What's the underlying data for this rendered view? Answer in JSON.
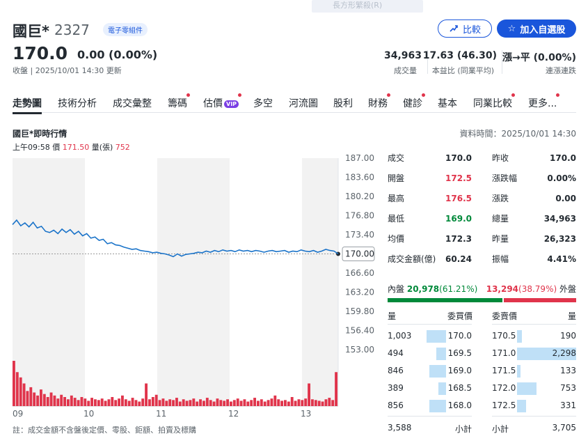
{
  "tooltip": {
    "text": "長方形繁殺(R)"
  },
  "header": {
    "name": "國巨*",
    "code": "2327",
    "tag": "電子零組件",
    "price": "170.0",
    "change": "0.00 (0.00%)",
    "close_info": "收盤 | 2025/10/01 14:30 更新",
    "compare_label": "比較",
    "watch_label": "加入自選股"
  },
  "stats": [
    {
      "value": "34,963",
      "label": "成交量"
    },
    {
      "value": "17.63 (46.30)",
      "label": "本益比 (同業平均)"
    },
    {
      "value": "漲→平 (0.00%)",
      "label": "連漲連跌"
    }
  ],
  "tabs": [
    {
      "label": "走勢圖",
      "dot": false,
      "vip": false
    },
    {
      "label": "技術分析",
      "dot": false,
      "vip": false
    },
    {
      "label": "成交彙整",
      "dot": false,
      "vip": false
    },
    {
      "label": "籌碼",
      "dot": true,
      "vip": false
    },
    {
      "label": "估價",
      "dot": true,
      "vip": true,
      "vip_text": "VIP"
    },
    {
      "label": "多空",
      "dot": false,
      "vip": false
    },
    {
      "label": "河流圖",
      "dot": false,
      "vip": false
    },
    {
      "label": "股利",
      "dot": false,
      "vip": false
    },
    {
      "label": "財務",
      "dot": true,
      "vip": false
    },
    {
      "label": "健診",
      "dot": true,
      "vip": false
    },
    {
      "label": "基本",
      "dot": false,
      "vip": false
    },
    {
      "label": "同業比較",
      "dot": true,
      "vip": false
    },
    {
      "label": "更多...",
      "dot": true,
      "vip": false
    }
  ],
  "section": {
    "title": "國巨*即時行情",
    "data_time": "資料時間：2025/10/01 14:30",
    "hover_time": "上午09:58",
    "hover_price_label": "價",
    "hover_price": "171.50",
    "hover_vol_label": "量(張)",
    "hover_vol": "752"
  },
  "chart_data": {
    "type": "line",
    "y_ticks": [
      "187.00",
      "183.60",
      "180.20",
      "176.80",
      "173.40",
      "170.00",
      "166.60",
      "163.20",
      "159.80",
      "156.40",
      "153.00"
    ],
    "y_range": [
      153.0,
      187.0
    ],
    "x_ticks": [
      "09",
      "10",
      "11",
      "12",
      "13"
    ],
    "current_label": "170.00",
    "reference": 170.0,
    "series": [
      {
        "values": [
          175.2,
          176.0,
          175.0,
          175.5,
          174.8,
          175.6,
          174.6,
          174.9,
          174.0,
          173.8,
          174.2,
          173.6,
          174.4,
          173.8,
          174.3,
          173.5,
          174.0,
          173.2,
          173.6,
          172.8,
          173.0,
          172.4,
          172.6,
          171.8,
          172.0,
          171.6,
          171.5,
          171.2,
          171.0,
          170.8,
          170.9,
          170.6,
          170.5,
          170.4,
          170.2,
          170.3,
          170.1,
          170.0,
          169.8,
          169.5,
          170.0,
          169.6,
          169.9,
          170.0,
          170.1,
          170.3,
          170.2,
          170.5,
          170.3,
          170.6,
          170.4,
          170.7,
          170.5,
          170.6,
          170.4,
          170.7,
          170.5,
          170.6,
          170.4,
          170.6,
          170.5,
          170.3,
          170.5,
          170.6,
          170.4,
          170.5,
          170.6,
          170.3,
          170.5,
          170.4,
          170.7,
          170.5,
          170.4,
          170.6,
          170.3,
          170.5,
          170.8,
          170.6,
          170.5,
          170.0
        ]
      }
    ],
    "volumes": [
      60,
      45,
      38,
      30,
      20,
      25,
      18,
      14,
      22,
      16,
      12,
      18,
      14,
      10,
      15,
      12,
      9,
      14,
      11,
      8,
      12,
      10,
      7,
      11,
      9,
      8,
      10,
      7,
      9,
      12,
      8,
      10,
      14,
      9,
      7,
      11,
      8,
      6,
      10,
      30,
      9,
      12,
      15,
      8,
      10,
      7,
      9,
      8,
      11,
      6,
      9,
      7,
      8,
      10,
      6,
      9,
      7,
      11,
      8,
      6,
      10,
      8,
      7,
      9,
      6,
      8,
      10,
      7,
      9,
      6,
      8,
      11,
      7,
      9,
      6,
      8,
      10,
      14,
      9,
      7,
      8,
      6,
      12,
      7,
      9,
      8,
      10,
      30,
      9,
      8,
      7,
      6,
      9,
      11,
      8,
      45
    ]
  },
  "quote": {
    "left": [
      {
        "label": "成交",
        "value": "170.0",
        "color": ""
      },
      {
        "label": "開盤",
        "value": "172.5",
        "color": "red"
      },
      {
        "label": "最高",
        "value": "176.5",
        "color": "red"
      },
      {
        "label": "最低",
        "value": "169.0",
        "color": "green"
      },
      {
        "label": "均價",
        "value": "172.3",
        "color": ""
      },
      {
        "label": "成交金額(億)",
        "value": "60.24",
        "color": ""
      }
    ],
    "right": [
      {
        "label": "昨收",
        "value": "170.0",
        "color": ""
      },
      {
        "label": "漲跌幅",
        "value": "0.00%",
        "color": ""
      },
      {
        "label": "漲跌",
        "value": "0.00",
        "color": ""
      },
      {
        "label": "總量",
        "value": "34,963",
        "color": ""
      },
      {
        "label": "昨量",
        "value": "26,323",
        "color": ""
      },
      {
        "label": "振幅",
        "value": "4.41%",
        "color": ""
      }
    ]
  },
  "inner_outer": {
    "inner_label": "內盤",
    "inner_value": "20,978",
    "inner_pct": "(61.21%)",
    "outer_value": "13,294",
    "outer_pct": "(38.79%)",
    "outer_label": "外盤",
    "inner_ratio": 0.6121
  },
  "orderbook": {
    "headers": {
      "vol": "量",
      "bid": "委買價",
      "ask": "委賣價",
      "vol2": "量"
    },
    "rows": [
      {
        "bid_vol": "1,003",
        "bid": "170.0",
        "ask": "170.5",
        "ask_vol": "190",
        "bid_ratio": 0.44,
        "ask_ratio": 0.08
      },
      {
        "bid_vol": "494",
        "bid": "169.5",
        "ask": "171.0",
        "ask_vol": "2,298",
        "bid_ratio": 0.22,
        "ask_ratio": 1.0
      },
      {
        "bid_vol": "846",
        "bid": "169.0",
        "ask": "171.5",
        "ask_vol": "133",
        "bid_ratio": 0.38,
        "ask_ratio": 0.06
      },
      {
        "bid_vol": "389",
        "bid": "168.5",
        "ask": "172.0",
        "ask_vol": "753",
        "bid_ratio": 0.17,
        "ask_ratio": 0.33
      },
      {
        "bid_vol": "856",
        "bid": "168.0",
        "ask": "172.5",
        "ask_vol": "331",
        "bid_ratio": 0.38,
        "ask_ratio": 0.15
      }
    ],
    "subtotal_bid_vol": "3,588",
    "subtotal_label": "小計",
    "subtotal_ask_vol": "3,705"
  },
  "footer_note": "註：成交金額不含盤後定價、零股、鉅額、拍賣及標購"
}
